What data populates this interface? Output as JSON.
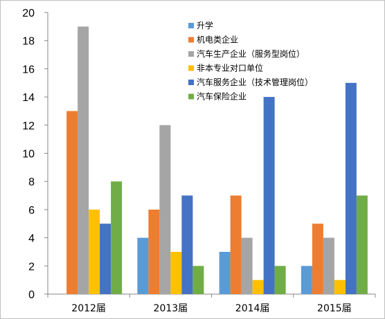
{
  "chart_data": {
    "type": "bar",
    "categories": [
      "2012届",
      "2013届",
      "2014届",
      "2015届"
    ],
    "ylim": [
      0,
      20
    ],
    "yticks": [
      0,
      2,
      4,
      6,
      8,
      10,
      12,
      14,
      16,
      18,
      20
    ],
    "grid": false,
    "legend_position": "top-right",
    "series": [
      {
        "name": "升学",
        "color": "#5b9bd5",
        "values": [
          0,
          4,
          3,
          2
        ]
      },
      {
        "name": "机电类企业",
        "color": "#ed7d31",
        "values": [
          13,
          6,
          7,
          5
        ]
      },
      {
        "name": "汽车生产企业（服务型岗位）",
        "color": "#a5a5a5",
        "values": [
          19,
          12,
          4,
          4
        ]
      },
      {
        "name": "非本专业对口单位",
        "color": "#ffc000",
        "values": [
          6,
          3,
          1,
          1
        ]
      },
      {
        "name": "汽车服务企业（技术管理岗位）",
        "color": "#4472c4",
        "values": [
          5,
          7,
          14,
          15
        ]
      },
      {
        "name": "汽车保险企业",
        "color": "#70ad47",
        "values": [
          8,
          2,
          2,
          7
        ]
      }
    ]
  }
}
